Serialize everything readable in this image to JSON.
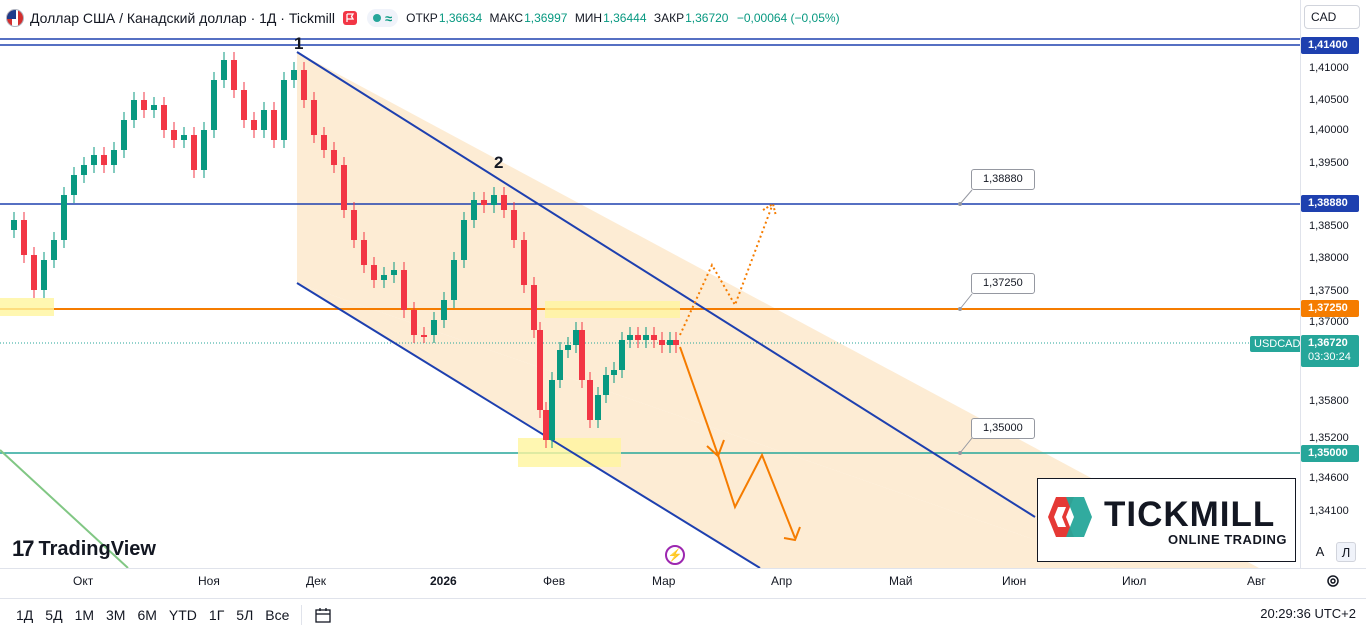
{
  "header": {
    "title": "Доллар США / Канадский доллар · 1Д · Tickmill",
    "open_label": "ОТКР",
    "open_value": "1,36634",
    "high_label": "МАКС",
    "high_value": "1,36997",
    "low_label": "МИН",
    "low_value": "1,36444",
    "close_label": "ЗАКР",
    "close_value": "1,36720",
    "change": "−0,00064 (−0,05%)",
    "pill_symbol": "≈"
  },
  "currency": "CAD",
  "price_ticks": [
    "1,41000",
    "1,40500",
    "1,40000",
    "1,39500",
    "1,38500",
    "1,38000",
    "1,37500",
    "1,37000",
    "1,35800",
    "1,35200",
    "1,34600",
    "1,34100"
  ],
  "price_labels": {
    "top": "1,41400",
    "resistance": "1,38880",
    "pivot": "1,37250",
    "support": "1,35000"
  },
  "callouts": {
    "resistance": "1,38880",
    "pivot": "1,37250",
    "support": "1,35000"
  },
  "symbol_tag": "USDCAD",
  "last_price": {
    "value": "1,36720",
    "timer": "03:30:24"
  },
  "wave_labels": {
    "one": "1",
    "two": "2"
  },
  "time_labels": [
    "Окт",
    "Ноя",
    "Дек",
    "2026",
    "Фев",
    "Мар",
    "Апр",
    "Май",
    "Июн",
    "Июл",
    "Авг"
  ],
  "ranges": [
    "1Д",
    "5Д",
    "1М",
    "3М",
    "6М",
    "YTD",
    "1Г",
    "5Л",
    "Все"
  ],
  "clock": "20:29:36 UTC+2",
  "watermark": "TradingView",
  "tickmill": {
    "name": "TICKMILL",
    "sub": "ONLINE TRADING"
  },
  "scale_buttons": {
    "auto": "A",
    "log": "Л"
  },
  "colors": {
    "up": "#089981",
    "down": "#f23645",
    "channel": "#1e40af",
    "pivot": "#f57c00",
    "support": "#26a69a",
    "fill": "#fde7c8"
  }
}
